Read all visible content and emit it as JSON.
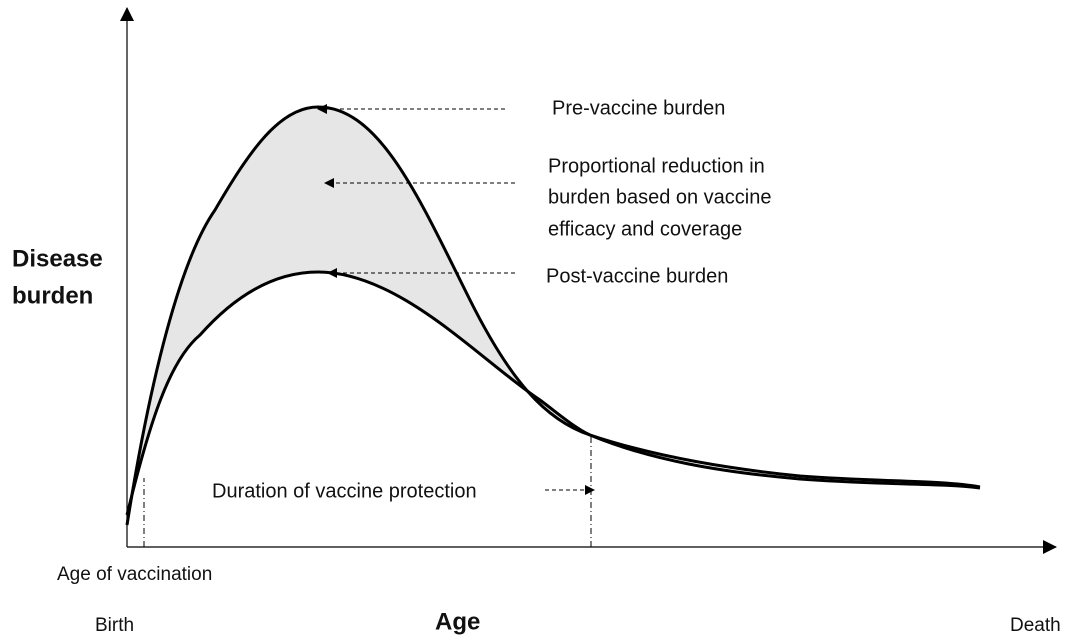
{
  "y_axis_label": [
    "Disease",
    "burden"
  ],
  "x_axis_label": "Age",
  "x_start_label": "Birth",
  "x_end_label": "Death",
  "vaccination_label": "Age of vaccination",
  "annotations": {
    "pre_vaccine": "Pre-vaccine burden",
    "reduction": [
      "Proportional reduction in",
      "burden based on vaccine",
      "efficacy and coverage"
    ],
    "post_vaccine": "Post-vaccine burden",
    "duration": "Duration of vaccine protection"
  }
}
